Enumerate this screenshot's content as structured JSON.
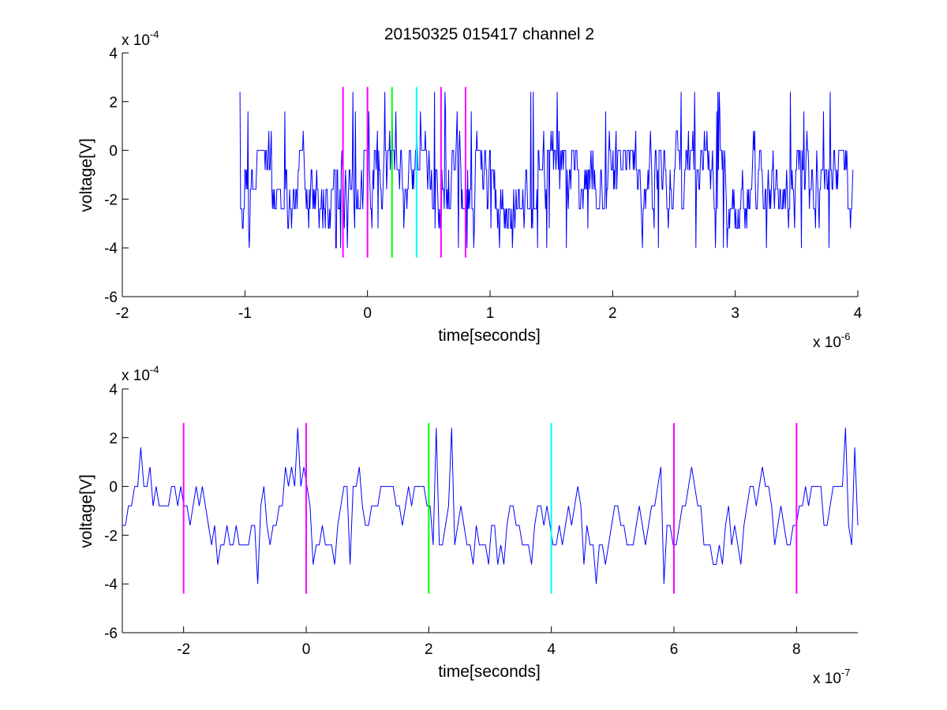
{
  "figure_title": "20150325 015417 channel 2",
  "chart_data": [
    {
      "type": "line",
      "xlabel": "time[seconds]",
      "ylabel": "voltage[V]",
      "x_multiplier": "x 10",
      "x_exponent": "-6",
      "y_multiplier": "x 10",
      "y_exponent": "-4",
      "xlim": [
        -2,
        4
      ],
      "ylim": [
        -6,
        4
      ],
      "x_ticks": [
        -2,
        -1,
        0,
        1,
        2,
        3,
        4
      ],
      "y_ticks": [
        -6,
        -4,
        -2,
        0,
        2,
        4
      ],
      "grid": false,
      "trace": {
        "color": "#0000ff",
        "x_start": -1.04,
        "x_end": 3.96,
        "n_points": 1000,
        "levels": [
          -4.0,
          -3.2,
          -2.4,
          -1.6,
          -0.8,
          0.0,
          0.8,
          1.6,
          2.4
        ],
        "typical_range": [
          -2.4,
          0.8
        ],
        "peak_max": 2.4,
        "peak_min": -4.0,
        "baseline": -0.8
      },
      "markers": [
        {
          "x": -0.2,
          "color": "#ff00ff",
          "ymin": -4.4,
          "ymax": 2.6
        },
        {
          "x": 0.0,
          "color": "#ff00ff",
          "ymin": -4.4,
          "ymax": 2.6
        },
        {
          "x": 0.2,
          "color": "#00ff00",
          "ymin": -4.4,
          "ymax": 2.6
        },
        {
          "x": 0.4,
          "color": "#00ffff",
          "ymin": -4.4,
          "ymax": 2.6
        },
        {
          "x": 0.6,
          "color": "#ff00ff",
          "ymin": -4.4,
          "ymax": 2.6
        },
        {
          "x": 0.8,
          "color": "#ff00ff",
          "ymin": -4.4,
          "ymax": 2.6
        }
      ]
    },
    {
      "type": "line",
      "xlabel": "time[seconds]",
      "ylabel": "voltage[V]",
      "x_multiplier": "x 10",
      "x_exponent": "-7",
      "y_multiplier": "x 10",
      "y_exponent": "-4",
      "xlim": [
        -3,
        9
      ],
      "ylim": [
        -6,
        4
      ],
      "x_ticks": [
        -2,
        0,
        2,
        4,
        6,
        8
      ],
      "y_ticks": [
        -6,
        -4,
        -2,
        0,
        2,
        4
      ],
      "grid": false,
      "trace": {
        "color": "#0000ff",
        "x_start": -3,
        "x_end": 9,
        "n_points": 240,
        "levels": [
          -4.0,
          -3.2,
          -2.4,
          -1.6,
          -0.8,
          0.0,
          0.8,
          1.6,
          2.4
        ],
        "typical_range": [
          -2.4,
          0.8
        ],
        "peak_max": 2.4,
        "peak_min": -4.0,
        "baseline": -0.8
      },
      "markers": [
        {
          "x": -2,
          "color": "#ff00ff",
          "ymin": -4.4,
          "ymax": 2.6
        },
        {
          "x": 0,
          "color": "#ff00ff",
          "ymin": -4.4,
          "ymax": 2.6
        },
        {
          "x": 2,
          "color": "#00ff00",
          "ymin": -4.4,
          "ymax": 2.6
        },
        {
          "x": 4,
          "color": "#00ffff",
          "ymin": -4.4,
          "ymax": 2.6
        },
        {
          "x": 6,
          "color": "#ff00ff",
          "ymin": -4.4,
          "ymax": 2.6
        },
        {
          "x": 8,
          "color": "#ff00ff",
          "ymin": -4.4,
          "ymax": 2.6
        }
      ]
    }
  ]
}
